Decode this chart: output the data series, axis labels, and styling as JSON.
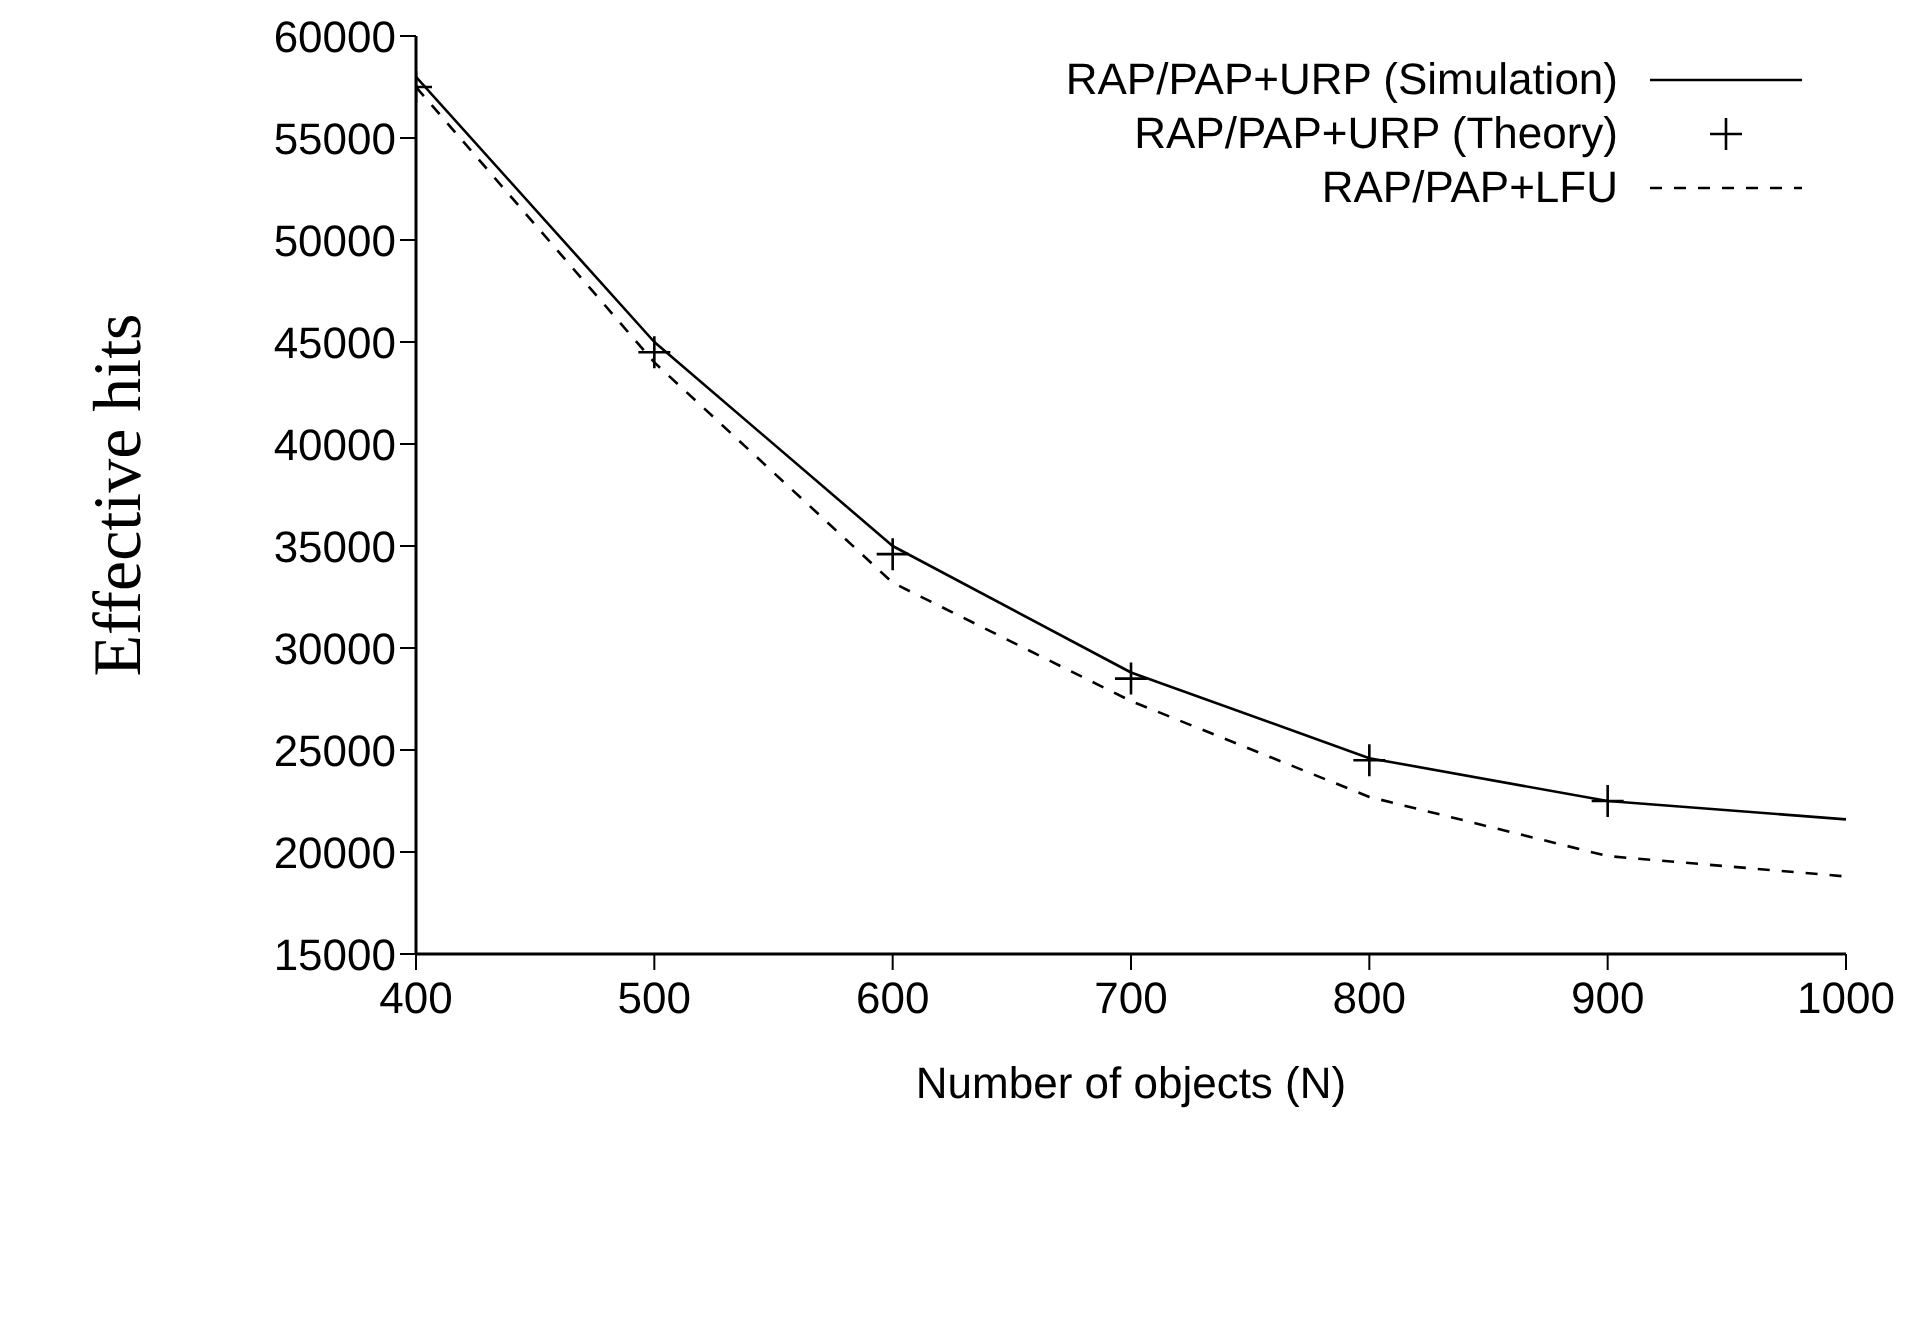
{
  "chart_data": {
    "type": "line",
    "xlabel": "Number of objects (N)",
    "ylabel": "Effective hits",
    "x": [
      400,
      500,
      600,
      700,
      800,
      900,
      1000
    ],
    "xlim": [
      400,
      1000
    ],
    "xticks": [
      400,
      500,
      600,
      700,
      800,
      900,
      1000
    ],
    "ylim": [
      15000,
      60000
    ],
    "yticks": [
      15000,
      20000,
      25000,
      30000,
      35000,
      40000,
      45000,
      50000,
      55000,
      60000
    ],
    "legend": "top right",
    "series": [
      {
        "name": "RAP/PAP+URP (Simulation)",
        "color": "#000000",
        "line_style": "solid",
        "marker": "none",
        "values": [
          58000,
          45000,
          35000,
          28800,
          24600,
          22500,
          21600
        ]
      },
      {
        "name": "RAP/PAP+URP (Theory)",
        "type": "scatter",
        "color": "#000000",
        "marker": "cross",
        "values": [
          57500,
          44500,
          34600,
          28500,
          24500,
          22500,
          null
        ]
      },
      {
        "name": "RAP/PAP+LFU",
        "color": "#000000",
        "line_style": "dashed",
        "marker": "none",
        "values": [
          57500,
          44000,
          33200,
          27400,
          22700,
          19800,
          18800
        ]
      }
    ]
  }
}
